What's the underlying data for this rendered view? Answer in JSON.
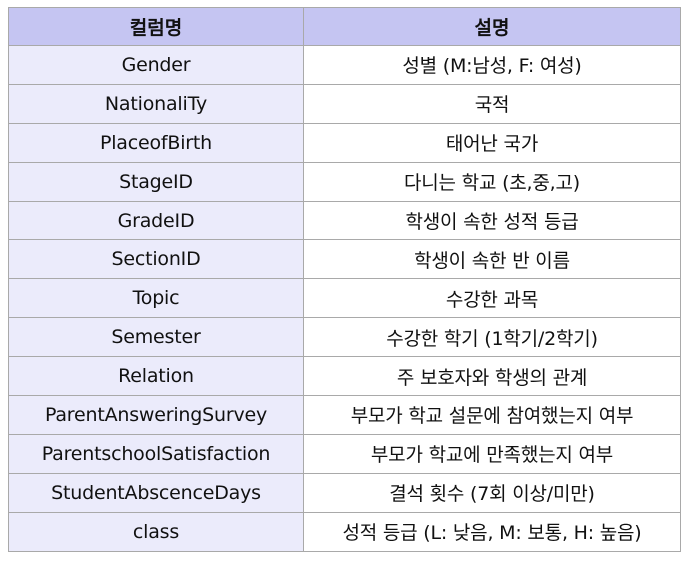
{
  "table": {
    "headers": [
      "컬럼명",
      "설명"
    ],
    "rows": [
      {
        "name": "Gender",
        "desc": "성별 (M:남성, F: 여성)"
      },
      {
        "name": "NationaliTy",
        "desc": "국적"
      },
      {
        "name": "PlaceofBirth",
        "desc": "태어난 국가"
      },
      {
        "name": "StageID",
        "desc": "다니는 학교 (초,중,고)"
      },
      {
        "name": "GradeID",
        "desc": "학생이 속한 성적 등급"
      },
      {
        "name": "SectionID",
        "desc": "학생이 속한 반 이름"
      },
      {
        "name": "Topic",
        "desc": "수강한 과목"
      },
      {
        "name": "Semester",
        "desc": "수강한 학기 (1학기/2학기)"
      },
      {
        "name": "Relation",
        "desc": "주 보호자와 학생의 관계"
      },
      {
        "name": "ParentAnsweringSurvey",
        "desc": "부모가 학교 설문에 참여했는지 여부"
      },
      {
        "name": "ParentschoolSatisfaction",
        "desc": "부모가 학교에 만족했는지 여부"
      },
      {
        "name": "StudentAbscenceDays",
        "desc": "결석 횟수 (7회 이상/미만)"
      },
      {
        "name": "class",
        "desc": "성적 등급 (L: 낮음, M: 보통, H: 높음)"
      }
    ]
  },
  "colors": {
    "header_bg": "#c5c5f2",
    "name_col_bg": "#ebebfb",
    "desc_col_bg": "#ffffff",
    "border": "#a9a9a9"
  }
}
